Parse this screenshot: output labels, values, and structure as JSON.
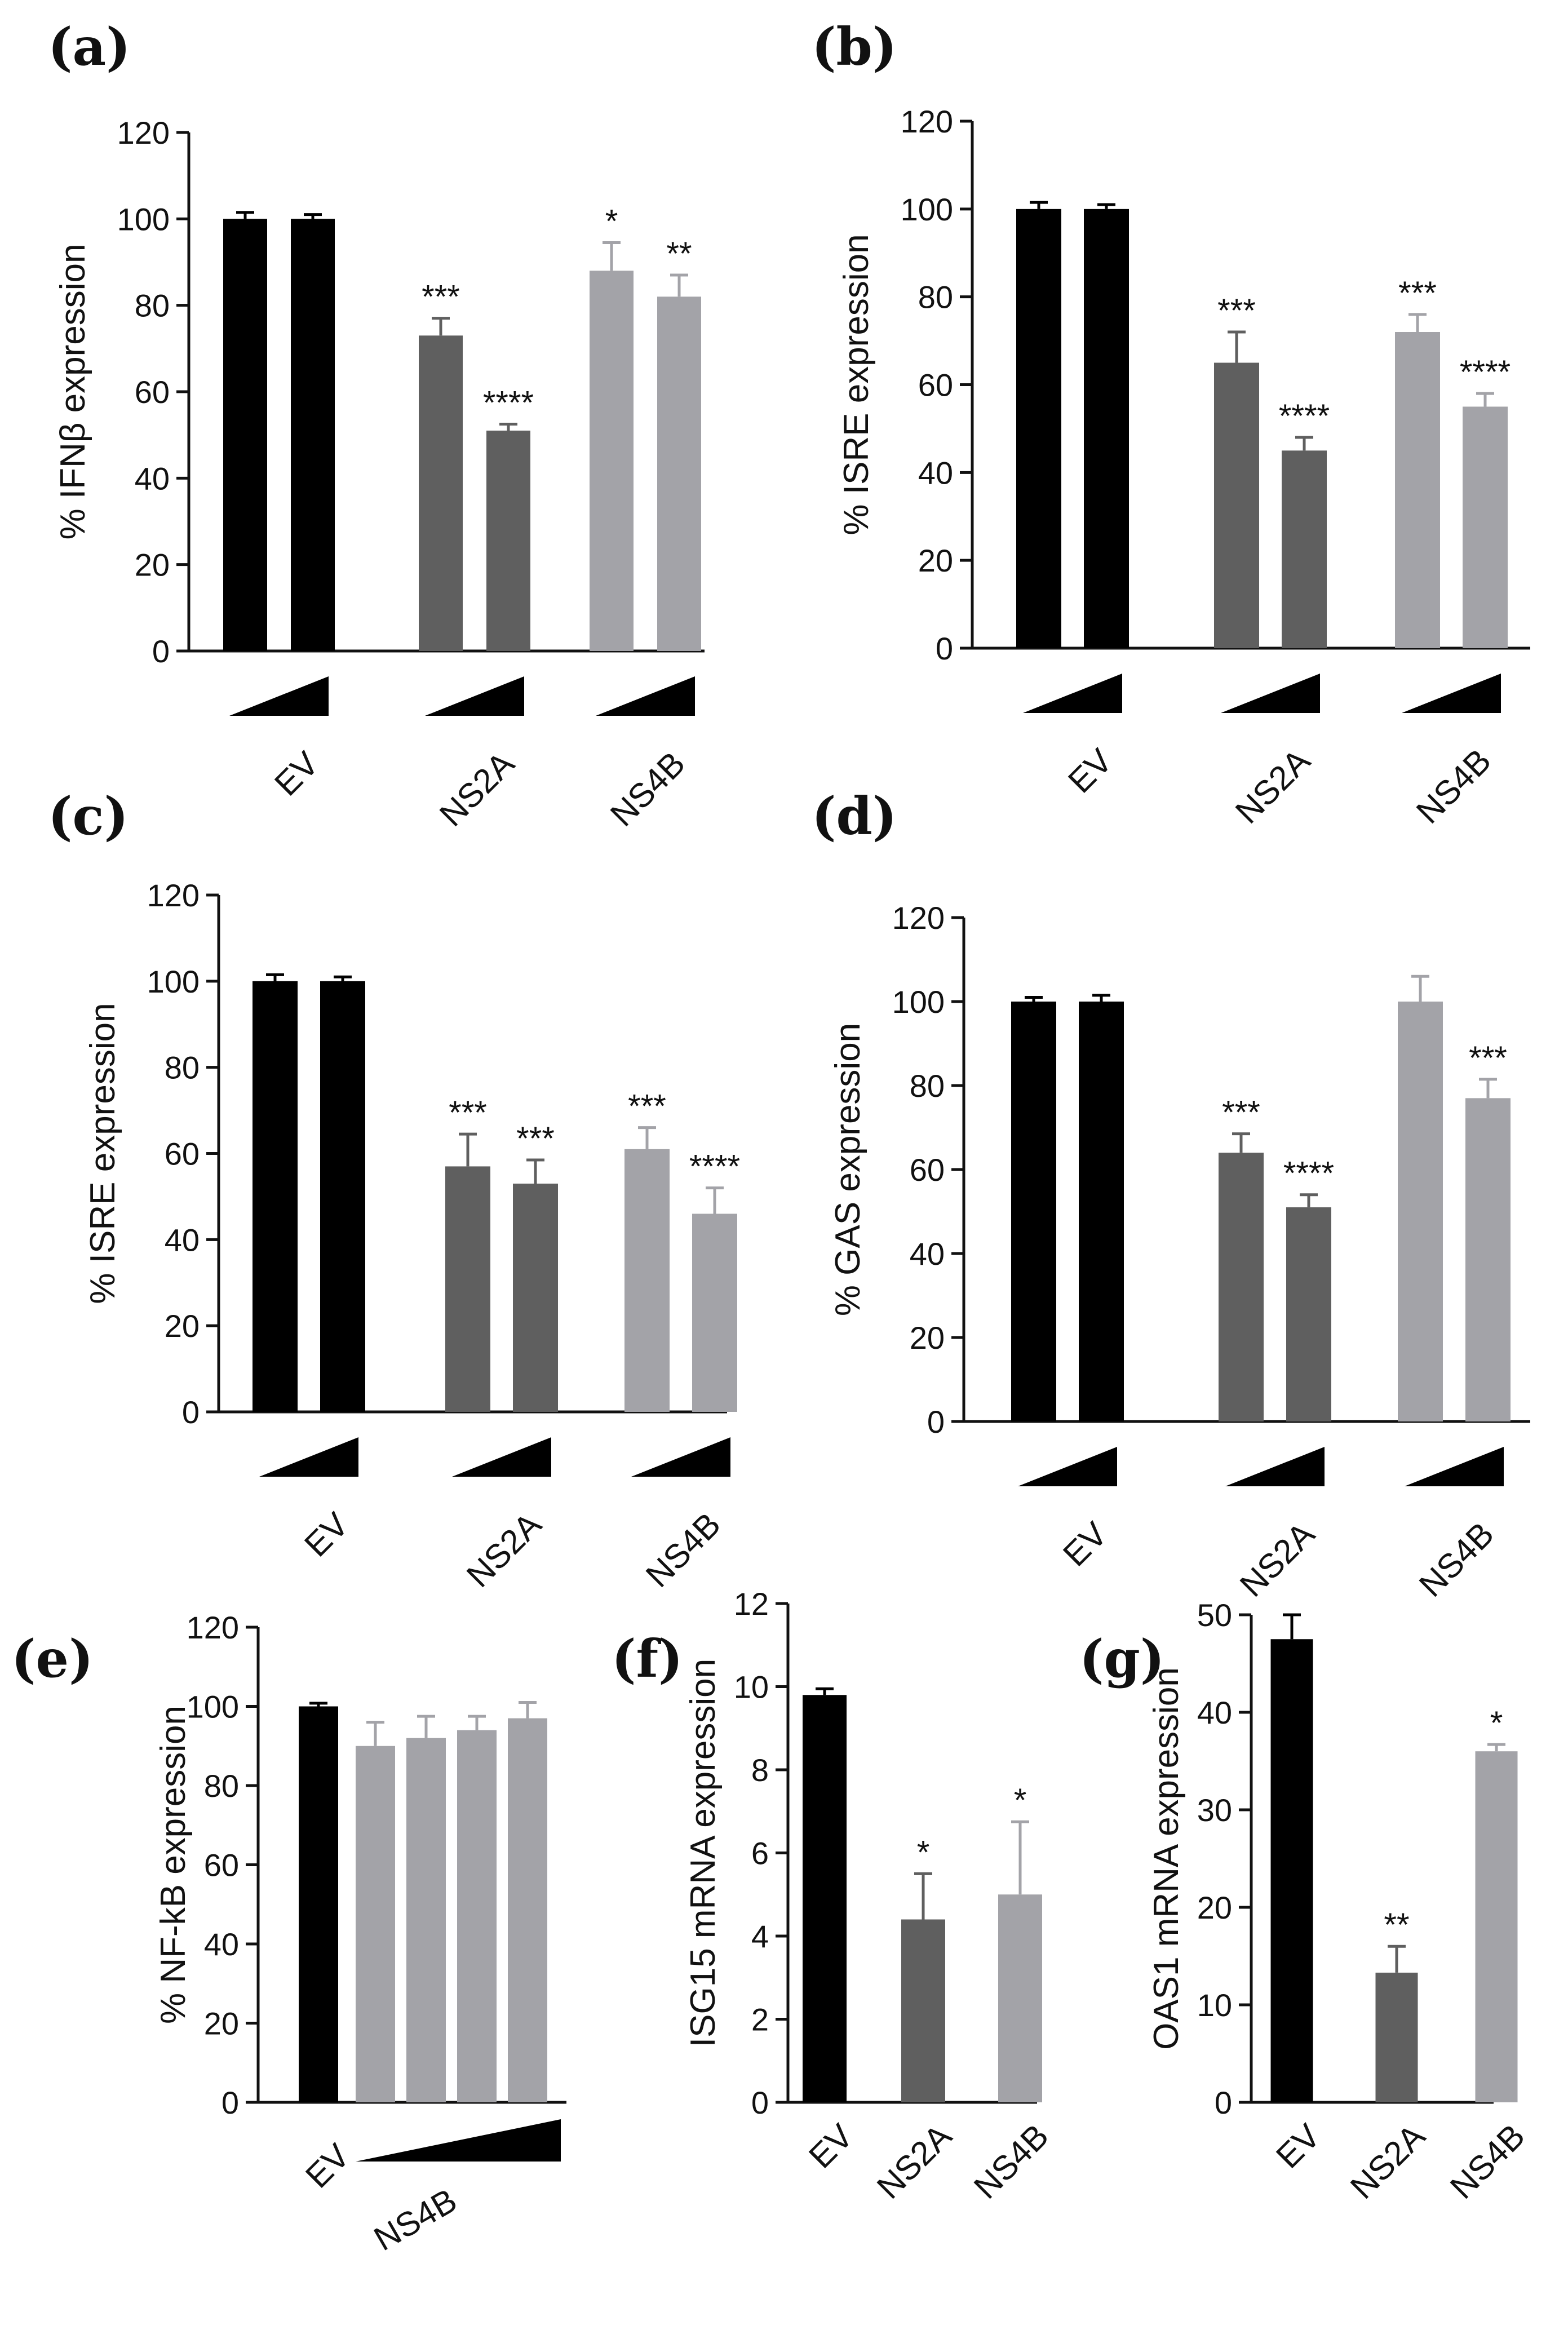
{
  "colors": {
    "EV": "#000000",
    "NS2A": "#5f5f5f",
    "NS4B": "#a3a3a8",
    "axis": "#111111"
  },
  "chart_data": [
    {
      "id": "a",
      "panel_label": "(a)",
      "type": "bar",
      "ylabel": "% IFNβ expression",
      "ylim": [
        0,
        120
      ],
      "yticks": [
        0,
        20,
        40,
        60,
        80,
        100,
        120
      ],
      "groups": [
        {
          "name": "EV",
          "color_key": "EV",
          "values": [
            100,
            100
          ],
          "errors": [
            1.5,
            1
          ],
          "sig": [
            "",
            ""
          ]
        },
        {
          "name": "NS2A",
          "color_key": "NS2A",
          "values": [
            73,
            51
          ],
          "errors": [
            4,
            1.5
          ],
          "sig": [
            "***",
            "****"
          ]
        },
        {
          "name": "NS4B",
          "color_key": "NS4B",
          "values": [
            88,
            82
          ],
          "errors": [
            6.5,
            5
          ],
          "sig": [
            "*",
            "**"
          ]
        }
      ],
      "dose_wedge": "per-group"
    },
    {
      "id": "b",
      "panel_label": "(b)",
      "type": "bar",
      "ylabel": "% ISRE expression",
      "ylim": [
        0,
        120
      ],
      "yticks": [
        0,
        20,
        40,
        60,
        80,
        100,
        120
      ],
      "groups": [
        {
          "name": "EV",
          "color_key": "EV",
          "values": [
            100,
            100
          ],
          "errors": [
            1.5,
            1
          ],
          "sig": [
            "",
            ""
          ]
        },
        {
          "name": "NS2A",
          "color_key": "NS2A",
          "values": [
            65,
            45
          ],
          "errors": [
            7,
            3
          ],
          "sig": [
            "***",
            "****"
          ]
        },
        {
          "name": "NS4B",
          "color_key": "NS4B",
          "values": [
            72,
            55
          ],
          "errors": [
            4,
            3
          ],
          "sig": [
            "***",
            "****"
          ]
        }
      ],
      "dose_wedge": "per-group"
    },
    {
      "id": "c",
      "panel_label": "(c)",
      "type": "bar",
      "ylabel": "% ISRE expression",
      "ylim": [
        0,
        120
      ],
      "yticks": [
        0,
        20,
        40,
        60,
        80,
        100,
        120
      ],
      "groups": [
        {
          "name": "EV",
          "color_key": "EV",
          "values": [
            100,
            100
          ],
          "errors": [
            1.5,
            1
          ],
          "sig": [
            "",
            ""
          ]
        },
        {
          "name": "NS2A",
          "color_key": "NS2A",
          "values": [
            57,
            53
          ],
          "errors": [
            7.5,
            5.5
          ],
          "sig": [
            "***",
            "***"
          ]
        },
        {
          "name": "NS4B",
          "color_key": "NS4B",
          "values": [
            61,
            46
          ],
          "errors": [
            5,
            6
          ],
          "sig": [
            "***",
            "****"
          ]
        }
      ],
      "dose_wedge": "per-group"
    },
    {
      "id": "d",
      "panel_label": "(d)",
      "type": "bar",
      "ylabel": "% GAS expression",
      "ylim": [
        0,
        120
      ],
      "yticks": [
        0,
        20,
        40,
        60,
        80,
        100,
        120
      ],
      "groups": [
        {
          "name": "EV",
          "color_key": "EV",
          "values": [
            100,
            100
          ],
          "errors": [
            1,
            1.5
          ],
          "sig": [
            "",
            ""
          ]
        },
        {
          "name": "NS2A",
          "color_key": "NS2A",
          "values": [
            64,
            51
          ],
          "errors": [
            4.5,
            3
          ],
          "sig": [
            "***",
            "****"
          ]
        },
        {
          "name": "NS4B",
          "color_key": "NS4B",
          "values": [
            100,
            77
          ],
          "errors": [
            6,
            4.5
          ],
          "sig": [
            "",
            "***"
          ]
        }
      ],
      "dose_wedge": "per-group"
    },
    {
      "id": "e",
      "panel_label": "(e)",
      "type": "bar",
      "ylabel": "% NF-kB expression",
      "ylim": [
        0,
        120
      ],
      "yticks": [
        0,
        20,
        40,
        60,
        80,
        100,
        120
      ],
      "groups": [
        {
          "name": "EV",
          "color_key": "EV",
          "values": [
            100
          ],
          "errors": [
            0.8
          ],
          "sig": [
            ""
          ]
        },
        {
          "name": "NS4B",
          "color_key": "NS4B",
          "values": [
            90,
            92,
            94,
            97
          ],
          "errors": [
            6,
            5.5,
            3.5,
            4
          ],
          "sig": [
            "",
            "",
            "",
            ""
          ]
        }
      ],
      "dose_wedge": "last-group"
    },
    {
      "id": "f",
      "panel_label": "(f)",
      "type": "bar",
      "ylabel": "ISG15 mRNA expression",
      "ylim": [
        0,
        12
      ],
      "yticks": [
        0,
        2,
        4,
        6,
        8,
        10,
        12
      ],
      "groups": [
        {
          "name": "EV",
          "color_key": "EV",
          "values": [
            9.8
          ],
          "errors": [
            0.15
          ],
          "sig": [
            ""
          ]
        },
        {
          "name": "NS2A",
          "color_key": "NS2A",
          "values": [
            4.4
          ],
          "errors": [
            1.1
          ],
          "sig": [
            "*"
          ]
        },
        {
          "name": "NS4B",
          "color_key": "NS4B",
          "values": [
            5.0
          ],
          "errors": [
            1.75
          ],
          "sig": [
            "*"
          ]
        }
      ],
      "dose_wedge": "none"
    },
    {
      "id": "g",
      "panel_label": "(g)",
      "type": "bar",
      "ylabel": "OAS1 mRNA expression",
      "ylim": [
        0,
        50
      ],
      "yticks": [
        0,
        10,
        20,
        30,
        40,
        50
      ],
      "groups": [
        {
          "name": "EV",
          "color_key": "EV",
          "values": [
            47.5
          ],
          "errors": [
            2.5
          ],
          "sig": [
            ""
          ]
        },
        {
          "name": "NS2A",
          "color_key": "NS2A",
          "values": [
            13.3
          ],
          "errors": [
            2.7
          ],
          "sig": [
            "**"
          ]
        },
        {
          "name": "NS4B",
          "color_key": "NS4B",
          "values": [
            36
          ],
          "errors": [
            0.7
          ],
          "sig": [
            "*"
          ]
        }
      ],
      "dose_wedge": "none"
    }
  ]
}
